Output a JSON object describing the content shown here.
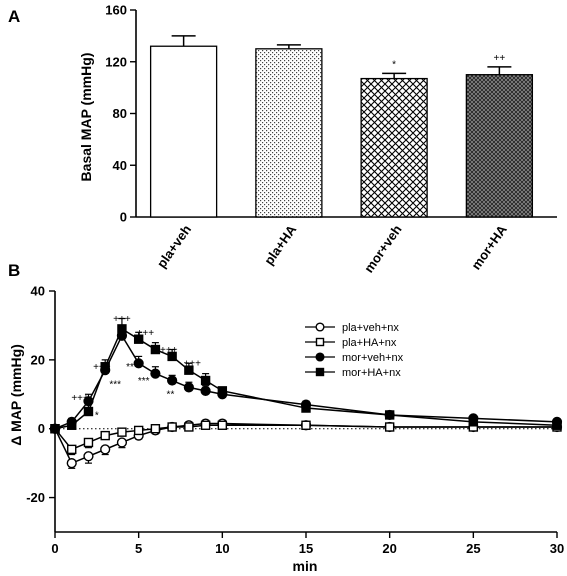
{
  "chart_data": [
    {
      "panel": "A",
      "type": "bar",
      "ylabel": "Basal MAP (mmHg)",
      "xlabel": "",
      "ylim": [
        0,
        160
      ],
      "yticks": [
        0,
        40,
        80,
        120,
        160
      ],
      "categories": [
        "pla+veh",
        "pla+HA",
        "mor+veh",
        "mor+HA"
      ],
      "values": [
        132,
        130,
        107,
        110
      ],
      "errors": [
        8,
        3,
        4,
        6
      ],
      "annotations": [
        "",
        "",
        "*",
        "++"
      ],
      "fills": [
        "white",
        "dots",
        "crosshatch",
        "dense-crosshatch"
      ],
      "grid": false
    },
    {
      "panel": "B",
      "type": "line",
      "ylabel": "Δ MAP (mmHg)",
      "xlabel": "min",
      "xlim": [
        0,
        30
      ],
      "ylim": [
        -30,
        40
      ],
      "xticks": [
        0,
        5,
        10,
        15,
        20,
        25,
        30
      ],
      "yticks": [
        -20,
        0,
        20,
        40
      ],
      "legend_position": "top-right",
      "grid": false,
      "zero_line": "dotted",
      "series": [
        {
          "name": "pla+veh+nx",
          "marker": "circle-open",
          "x": [
            0,
            1,
            2,
            3,
            4,
            5,
            6,
            7,
            8,
            9,
            10,
            15,
            20,
            25,
            30
          ],
          "y": [
            0,
            -10,
            -8,
            -6,
            -4,
            -2,
            -0.5,
            0.5,
            1,
            1.5,
            1.5,
            1,
            0.5,
            0.5,
            0.5
          ],
          "err": [
            0,
            1.5,
            2,
            1.5,
            1.5,
            1,
            1,
            1,
            1,
            1,
            1,
            0.5,
            0.5,
            0.5,
            0.5
          ]
        },
        {
          "name": "pla+HA+nx",
          "marker": "square-open",
          "x": [
            0,
            1,
            2,
            3,
            4,
            5,
            6,
            7,
            8,
            9,
            10,
            15,
            20,
            25,
            30
          ],
          "y": [
            0,
            -6,
            -4,
            -2,
            -1,
            -0.5,
            0,
            0.5,
            0.5,
            1,
            1,
            1,
            0.5,
            0.5,
            0.5
          ],
          "err": [
            0,
            1.5,
            1.5,
            1,
            1,
            1,
            1,
            1,
            1,
            1,
            1,
            0.5,
            0.5,
            0.5,
            0.5
          ]
        },
        {
          "name": "mor+veh+nx",
          "marker": "circle-filled",
          "x": [
            0,
            1,
            2,
            3,
            4,
            5,
            6,
            7,
            8,
            9,
            10,
            15,
            20,
            25,
            30
          ],
          "y": [
            0,
            2,
            8,
            17,
            27,
            19,
            16,
            14,
            12,
            11,
            10,
            7,
            4,
            3,
            2
          ],
          "err": [
            0,
            1,
            2,
            2,
            3,
            2,
            2,
            1.5,
            1.5,
            1.5,
            1,
            1,
            1,
            0.5,
            0.5
          ]
        },
        {
          "name": "mor+HA+nx",
          "marker": "square-filled",
          "x": [
            0,
            1,
            2,
            3,
            4,
            5,
            6,
            7,
            8,
            9,
            10,
            15,
            20,
            25,
            30
          ],
          "y": [
            0,
            1,
            5,
            18,
            29,
            26,
            23,
            21,
            17,
            14,
            11,
            6,
            4,
            2,
            1
          ],
          "err": [
            0,
            1,
            2,
            2,
            3,
            2,
            2,
            2,
            2,
            2,
            1,
            1,
            1,
            0.5,
            0.5
          ]
        }
      ],
      "annotations": [
        {
          "x": 1.5,
          "y": 8,
          "text": "+++"
        },
        {
          "x": 2.8,
          "y": 17,
          "text": "+++"
        },
        {
          "x": 4.0,
          "y": 31,
          "text": "+++"
        },
        {
          "x": 5.4,
          "y": 27,
          "text": "+++"
        },
        {
          "x": 6.8,
          "y": 22,
          "text": "+++"
        },
        {
          "x": 8.2,
          "y": 18,
          "text": "+++"
        },
        {
          "x": 2.5,
          "y": 3,
          "text": "*"
        },
        {
          "x": 3.6,
          "y": 12,
          "text": "***"
        },
        {
          "x": 4.6,
          "y": 17,
          "text": "***"
        },
        {
          "x": 5.3,
          "y": 13,
          "text": "***"
        },
        {
          "x": 6.9,
          "y": 9,
          "text": "**"
        }
      ]
    }
  ]
}
